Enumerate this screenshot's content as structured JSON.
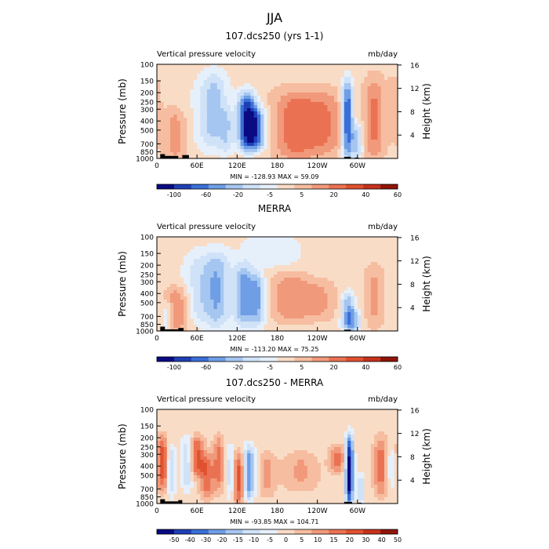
{
  "figure": {
    "season_title": "JJA",
    "colors": {
      "title_gray": "#777777",
      "land": "#000000"
    }
  },
  "chart_data": [
    {
      "type": "heatmap",
      "title": "107.dcs250 (yrs 1-1)",
      "subtitle_left": "Vertical pressure velocity",
      "subtitle_right": "mb/day",
      "ylabel": "Pressure (mb)",
      "ylabel_right": "Height (km)",
      "x_ticks": [
        "0",
        "60E",
        "120E",
        "180",
        "120W",
        "60W"
      ],
      "x_range": [
        0,
        360
      ],
      "y_ticks": [
        "100",
        "150",
        "200",
        "250",
        "300",
        "400",
        "500",
        "700",
        "850",
        "1000"
      ],
      "y_range_mb": [
        100,
        1000
      ],
      "y_scale": "log",
      "height_ticks_km": [
        "4",
        "8",
        "12",
        "16"
      ],
      "stats": "MIN = -128.93   MAX =  59.09",
      "colorbar_labels": [
        "-100",
        "-60",
        "-20",
        "-5",
        "5",
        "20",
        "40",
        "60"
      ],
      "colorbar_colors": [
        "#0a0a82",
        "#1f3fb5",
        "#3a6fd8",
        "#6f9ee6",
        "#a5c6f0",
        "#cfe2f8",
        "#e6f0fb",
        "#f9dcc6",
        "#f6bda0",
        "#f1997b",
        "#ea7252",
        "#e0512f",
        "#c7311b",
        "#8e1508"
      ],
      "field": {
        "background": 0.4,
        "blobs": [
          {
            "x": 28,
            "p1": 300,
            "p2": 1000,
            "v": 1.1,
            "w": 18
          },
          {
            "x": 45,
            "p1": 150,
            "p2": 900,
            "v": -0.3,
            "w": 25
          },
          {
            "x": 85,
            "p1": 120,
            "p2": 800,
            "v": -1.8,
            "w": 22
          },
          {
            "x": 105,
            "p1": 300,
            "p2": 900,
            "v": -0.9,
            "w": 10
          },
          {
            "x": 135,
            "p1": 200,
            "p2": 800,
            "v": -3.6,
            "w": 14
          },
          {
            "x": 150,
            "p1": 300,
            "p2": 800,
            "v": -2.4,
            "w": 14
          },
          {
            "x": 205,
            "p1": 200,
            "p2": 1000,
            "v": 1.6,
            "w": 30
          },
          {
            "x": 250,
            "p1": 200,
            "p2": 900,
            "v": 1.3,
            "w": 30
          },
          {
            "x": 285,
            "p1": 150,
            "p2": 1000,
            "v": -3.3,
            "w": 9
          },
          {
            "x": 300,
            "p1": 450,
            "p2": 1000,
            "v": -1.6,
            "w": 8
          },
          {
            "x": 325,
            "p1": 150,
            "p2": 1000,
            "v": 1.4,
            "w": 14
          },
          {
            "x": 355,
            "p1": 150,
            "p2": 600,
            "v": 0.7,
            "w": 10
          }
        ]
      },
      "land_segments": [
        [
          5,
          12,
          900
        ],
        [
          12,
          32,
          940
        ],
        [
          38,
          48,
          920
        ],
        [
          280,
          290,
          960
        ],
        [
          296,
          302,
          980
        ]
      ]
    },
    {
      "type": "heatmap",
      "title": "MERRA",
      "subtitle_left": "Vertical pressure velocity",
      "subtitle_right": "mb/day",
      "ylabel": "Pressure (mb)",
      "ylabel_right": "Height (km)",
      "x_ticks": [
        "0",
        "60E",
        "120E",
        "180",
        "120W",
        "60W"
      ],
      "x_range": [
        0,
        360
      ],
      "y_ticks": [
        "100",
        "150",
        "200",
        "250",
        "300",
        "400",
        "500",
        "700",
        "850",
        "1000"
      ],
      "y_range_mb": [
        100,
        1000
      ],
      "y_scale": "log",
      "height_ticks_km": [
        "4",
        "8",
        "12",
        "16"
      ],
      "stats": "MIN = -113.20   MAX =  75.25",
      "colorbar_labels": [
        "-100",
        "-60",
        "-20",
        "-5",
        "5",
        "20",
        "40",
        "60"
      ],
      "colorbar_colors": [
        "#0a0a82",
        "#1f3fb5",
        "#3a6fd8",
        "#6f9ee6",
        "#a5c6f0",
        "#cfe2f8",
        "#e6f0fb",
        "#f9dcc6",
        "#f6bda0",
        "#f1997b",
        "#ea7252",
        "#e0512f",
        "#c7311b",
        "#8e1508"
      ],
      "field": {
        "background": 0.25,
        "blobs": [
          {
            "x": 30,
            "p1": 350,
            "p2": 1000,
            "v": 1.4,
            "w": 18
          },
          {
            "x": 15,
            "p1": 500,
            "p2": 1000,
            "v": -0.9,
            "w": 10
          },
          {
            "x": 60,
            "p1": 150,
            "p2": 800,
            "v": -1.0,
            "w": 20
          },
          {
            "x": 90,
            "p1": 150,
            "p2": 900,
            "v": -1.9,
            "w": 20
          },
          {
            "x": 130,
            "p1": 200,
            "p2": 850,
            "v": -2.2,
            "w": 14
          },
          {
            "x": 150,
            "p1": 250,
            "p2": 850,
            "v": -2.0,
            "w": 12
          },
          {
            "x": 200,
            "p1": 250,
            "p2": 800,
            "v": 1.3,
            "w": 30
          },
          {
            "x": 245,
            "p1": 300,
            "p2": 750,
            "v": 0.9,
            "w": 25
          },
          {
            "x": 285,
            "p1": 400,
            "p2": 1000,
            "v": -1.9,
            "w": 10
          },
          {
            "x": 295,
            "p1": 600,
            "p2": 1000,
            "v": -1.5,
            "w": 10
          },
          {
            "x": 325,
            "p1": 200,
            "p2": 900,
            "v": 1.0,
            "w": 15
          },
          {
            "x": 170,
            "p1": 100,
            "p2": 200,
            "v": -0.8,
            "w": 40
          }
        ]
      },
      "land_segments": [
        [
          5,
          12,
          900
        ],
        [
          12,
          32,
          960
        ],
        [
          32,
          40,
          930
        ],
        [
          280,
          290,
          970
        ]
      ]
    },
    {
      "type": "heatmap",
      "title": "107.dcs250 - MERRA",
      "subtitle_left": "Vertical pressure velocity",
      "subtitle_right": "mb/day",
      "ylabel": "Pressure (mb)",
      "ylabel_right": "Height (km)",
      "x_ticks": [
        "0",
        "60E",
        "120E",
        "180",
        "120W",
        "60W"
      ],
      "x_range": [
        0,
        360
      ],
      "y_ticks": [
        "100",
        "150",
        "200",
        "250",
        "300",
        "400",
        "500",
        "700",
        "850",
        "1000"
      ],
      "y_range_mb": [
        100,
        1000
      ],
      "y_scale": "log",
      "height_ticks_km": [
        "4",
        "8",
        "12",
        "16"
      ],
      "stats": "MIN = -93.85   MAX = 104.71",
      "colorbar_labels": [
        "-50",
        "-40",
        "-30",
        "-20",
        "-15",
        "-10",
        "-5",
        "0",
        "5",
        "10",
        "15",
        "20",
        "30",
        "40",
        "50"
      ],
      "colorbar_colors": [
        "#0a0a82",
        "#1f3fb5",
        "#3a6fd8",
        "#6f9ee6",
        "#a5c6f0",
        "#cfe2f8",
        "#e6f0fb",
        "#f9dcc6",
        "#f6bda0",
        "#f1997b",
        "#ea7252",
        "#e0512f",
        "#c7311b",
        "#8e1508"
      ],
      "field": {
        "background": 0.3,
        "blobs": [
          {
            "x": 8,
            "p1": 200,
            "p2": 700,
            "v": 2.2,
            "w": 8
          },
          {
            "x": 22,
            "p1": 250,
            "p2": 800,
            "v": -1.5,
            "w": 6
          },
          {
            "x": 45,
            "p1": 200,
            "p2": 700,
            "v": -1.4,
            "w": 8
          },
          {
            "x": 60,
            "p1": 200,
            "p2": 500,
            "v": 2.0,
            "w": 10
          },
          {
            "x": 75,
            "p1": 300,
            "p2": 850,
            "v": 1.8,
            "w": 10
          },
          {
            "x": 92,
            "p1": 200,
            "p2": 700,
            "v": 1.5,
            "w": 8
          },
          {
            "x": 110,
            "p1": 250,
            "p2": 850,
            "v": -1.2,
            "w": 6
          },
          {
            "x": 122,
            "p1": 300,
            "p2": 1000,
            "v": 2.1,
            "w": 8
          },
          {
            "x": 138,
            "p1": 250,
            "p2": 900,
            "v": -2.4,
            "w": 8
          },
          {
            "x": 165,
            "p1": 300,
            "p2": 800,
            "v": 1.0,
            "w": 12
          },
          {
            "x": 215,
            "p1": 300,
            "p2": 700,
            "v": 0.9,
            "w": 25
          },
          {
            "x": 270,
            "p1": 250,
            "p2": 450,
            "v": 1.5,
            "w": 12
          },
          {
            "x": 288,
            "p1": 200,
            "p2": 1000,
            "v": -4.0,
            "w": 6
          },
          {
            "x": 305,
            "p1": 500,
            "p2": 1000,
            "v": -1.5,
            "w": 5
          },
          {
            "x": 335,
            "p1": 200,
            "p2": 800,
            "v": 1.6,
            "w": 10
          },
          {
            "x": 350,
            "p1": 250,
            "p2": 700,
            "v": -0.8,
            "w": 6
          }
        ]
      },
      "land_segments": [
        [
          5,
          12,
          900
        ],
        [
          12,
          32,
          950
        ],
        [
          32,
          38,
          920
        ],
        [
          280,
          292,
          960
        ],
        [
          300,
          306,
          980
        ]
      ]
    }
  ]
}
